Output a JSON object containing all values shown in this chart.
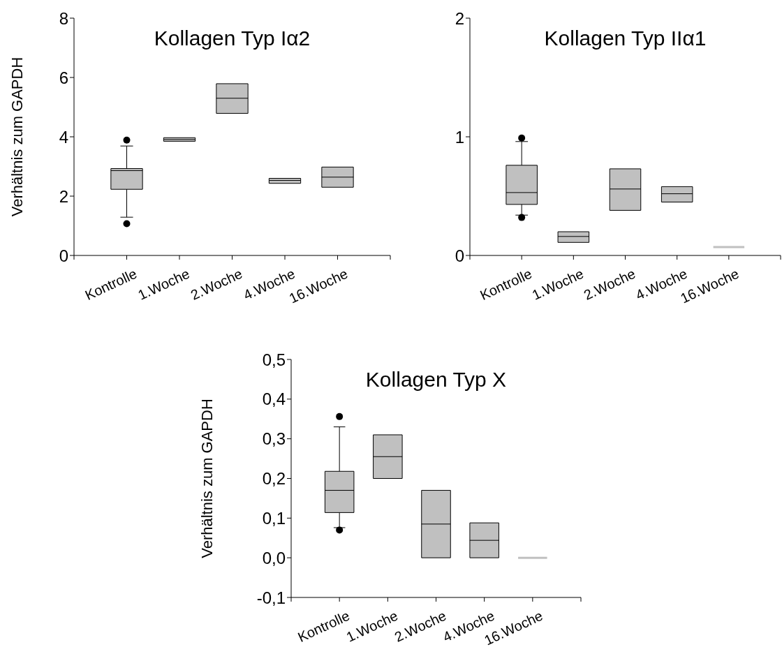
{
  "chart_data": [
    {
      "type": "box",
      "title": "Kollagen Typ Iα2",
      "ylabel": "Verhältnis zum GAPDH",
      "categories": [
        "Kontrolle",
        "1.Woche",
        "2.Woche",
        "4.Woche",
        "16.Woche"
      ],
      "color": "#c0c0c0",
      "ylim": [
        0,
        8
      ],
      "yticks": [
        0,
        2,
        4,
        6,
        8
      ],
      "boxes": [
        {
          "low": 1.29,
          "q1": 2.23,
          "median": 2.86,
          "q3": 2.93,
          "high": 3.69,
          "outliers": [
            3.89,
            1.07
          ]
        },
        {
          "low": 3.85,
          "q1": 3.85,
          "median": 3.91,
          "q3": 3.97,
          "high": 3.97
        },
        {
          "low": 4.79,
          "q1": 4.79,
          "median": 5.3,
          "q3": 5.79,
          "high": 5.79
        },
        {
          "low": 2.43,
          "q1": 2.43,
          "median": 2.53,
          "q3": 2.6,
          "high": 2.6
        },
        {
          "low": 2.3,
          "q1": 2.3,
          "median": 2.64,
          "q3": 2.98,
          "high": 2.98
        }
      ]
    },
    {
      "type": "box",
      "title": "Kollagen Typ IIα1",
      "categories": [
        "Kontrolle",
        "1.Woche",
        "2.Woche",
        "4.Woche",
        "16.Woche"
      ],
      "color": "#c0c0c0",
      "ylim": [
        0,
        2
      ],
      "yticks": [
        0,
        1,
        2
      ],
      "boxes": [
        {
          "low": 0.34,
          "q1": 0.43,
          "median": 0.53,
          "q3": 0.76,
          "high": 0.96,
          "outliers": [
            0.99,
            0.32
          ]
        },
        {
          "low": 0.11,
          "q1": 0.11,
          "median": 0.16,
          "q3": 0.2,
          "high": 0.2
        },
        {
          "low": 0.38,
          "q1": 0.38,
          "median": 0.56,
          "q3": 0.73,
          "high": 0.73
        },
        {
          "low": 0.45,
          "q1": 0.45,
          "median": 0.52,
          "q3": 0.58,
          "high": 0.58
        },
        {
          "low": 0.07,
          "q1": 0.07,
          "median": 0.07,
          "q3": 0.07,
          "high": 0.07
        }
      ]
    },
    {
      "type": "box",
      "title": "Kollagen Typ X",
      "ylabel": "Verhältnis zum GAPDH",
      "categories": [
        "Kontrolle",
        "1.Woche",
        "2.Woche",
        "4.Woche",
        "16.Woche"
      ],
      "color": "#c0c0c0",
      "ylim": [
        -0.1,
        0.5
      ],
      "yticks": [
        {
          "value": -0.1,
          "label": "-0,1"
        },
        {
          "value": 0,
          "label": "0,0"
        },
        {
          "value": 0.1,
          "label": "0,1"
        },
        {
          "value": 0.2,
          "label": "0,2"
        },
        {
          "value": 0.3,
          "label": "0,3"
        },
        {
          "value": 0.4,
          "label": "0,4"
        },
        {
          "value": 0.5,
          "label": "0,5"
        }
      ],
      "boxes": [
        {
          "low": 0.076,
          "q1": 0.114,
          "median": 0.17,
          "q3": 0.218,
          "high": 0.33,
          "outliers": [
            0.356,
            0.07
          ]
        },
        {
          "low": 0.2,
          "q1": 0.2,
          "median": 0.255,
          "q3": 0.31,
          "high": 0.31
        },
        {
          "low": 0,
          "q1": 0,
          "median": 0.085,
          "q3": 0.17,
          "high": 0.17
        },
        {
          "low": 0,
          "q1": 0,
          "median": 0.044,
          "q3": 0.088,
          "high": 0.088
        },
        {
          "low": 0,
          "q1": 0,
          "median": 0,
          "q3": 0,
          "high": 0
        }
      ]
    }
  ]
}
